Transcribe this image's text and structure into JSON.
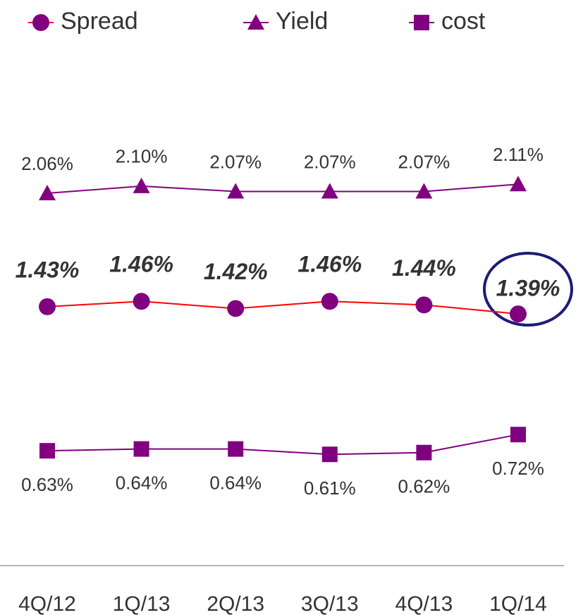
{
  "chart_data": {
    "type": "line",
    "categories": [
      "4Q/12",
      "1Q/13",
      "2Q/13",
      "3Q/13",
      "4Q/13",
      "1Q/14"
    ],
    "ylim": [
      0,
      2.35
    ],
    "series": [
      {
        "name": "Spread",
        "color": "#800080",
        "line_color": "#ff0000",
        "marker": "circle",
        "label_style": "bold",
        "values": [
          1.43,
          1.46,
          1.42,
          1.46,
          1.44,
          1.39
        ],
        "value_labels": [
          "1.43%",
          "1.46%",
          "1.42%",
          "1.46%",
          "1.44%",
          "1.39%"
        ]
      },
      {
        "name": "Yield",
        "color": "#800080",
        "line_color": "#800080",
        "marker": "triangle",
        "label_style": "above",
        "values": [
          2.06,
          2.1,
          2.07,
          2.07,
          2.07,
          2.11
        ],
        "value_labels": [
          "2.06%",
          "2.10%",
          "2.07%",
          "2.07%",
          "2.07%",
          "2.11%"
        ]
      },
      {
        "name": "cost",
        "color": "#800080",
        "line_color": "#800080",
        "marker": "square",
        "label_style": "below",
        "values": [
          0.63,
          0.64,
          0.64,
          0.61,
          0.62,
          0.72
        ],
        "value_labels": [
          "0.63%",
          "0.64%",
          "0.64%",
          "0.61%",
          "0.62%",
          "0.72%"
        ]
      }
    ]
  }
}
